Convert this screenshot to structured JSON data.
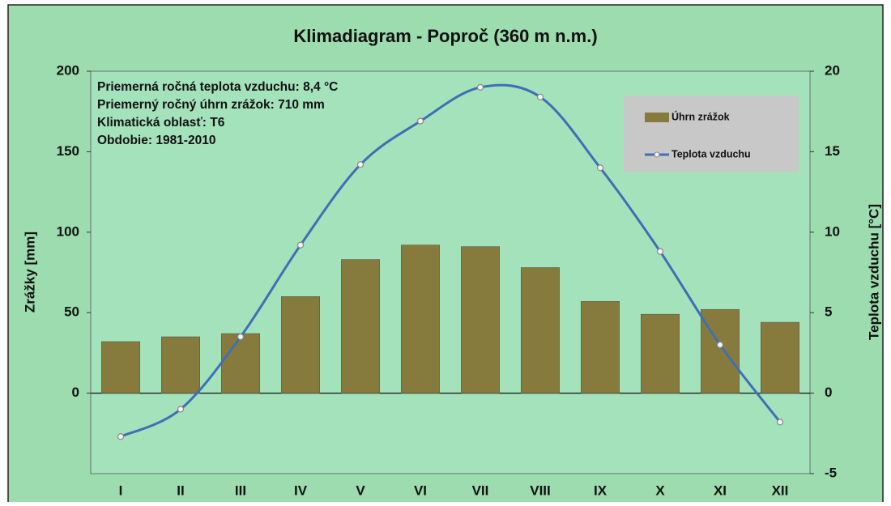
{
  "chart_data": {
    "type": "bar",
    "title": "Klimadiagram - Poproč (360 m n.m.)",
    "annotations": [
      "Priemerná ročná teplota vzduchu:  8,4 °C",
      "Priemerný ročný úhrn zrážok: 710 mm",
      "Klimatická oblasť: T6",
      "Obdobie: 1981-2010"
    ],
    "ylabel": "Zrážky [mm]",
    "y2label": "Teplota vzduchu [°C]",
    "categories": [
      "I",
      "II",
      "III",
      "IV",
      "V",
      "VI",
      "VII",
      "VIII",
      "IX",
      "X",
      "XI",
      "XII"
    ],
    "series": [
      {
        "name": "Úhrn zrážok",
        "type": "bar",
        "color": "#867b3d",
        "values": [
          32,
          35,
          37,
          60,
          83,
          92,
          91,
          78,
          57,
          49,
          52,
          44
        ]
      },
      {
        "name": "Teplota vzduchu",
        "type": "line",
        "axis": "y2",
        "color": "#3f6fb4",
        "values": [
          -2.7,
          -1.0,
          3.5,
          9.2,
          14.2,
          16.9,
          19.0,
          18.4,
          14.0,
          8.8,
          3.0,
          -1.8
        ]
      }
    ],
    "ylim": [
      -50,
      200
    ],
    "yticks": [
      0,
      50,
      100,
      150,
      200
    ],
    "y2lim": [
      -5,
      20
    ],
    "y2ticks": [
      -5,
      0,
      5,
      10,
      15,
      20
    ],
    "legend": "upper right"
  }
}
